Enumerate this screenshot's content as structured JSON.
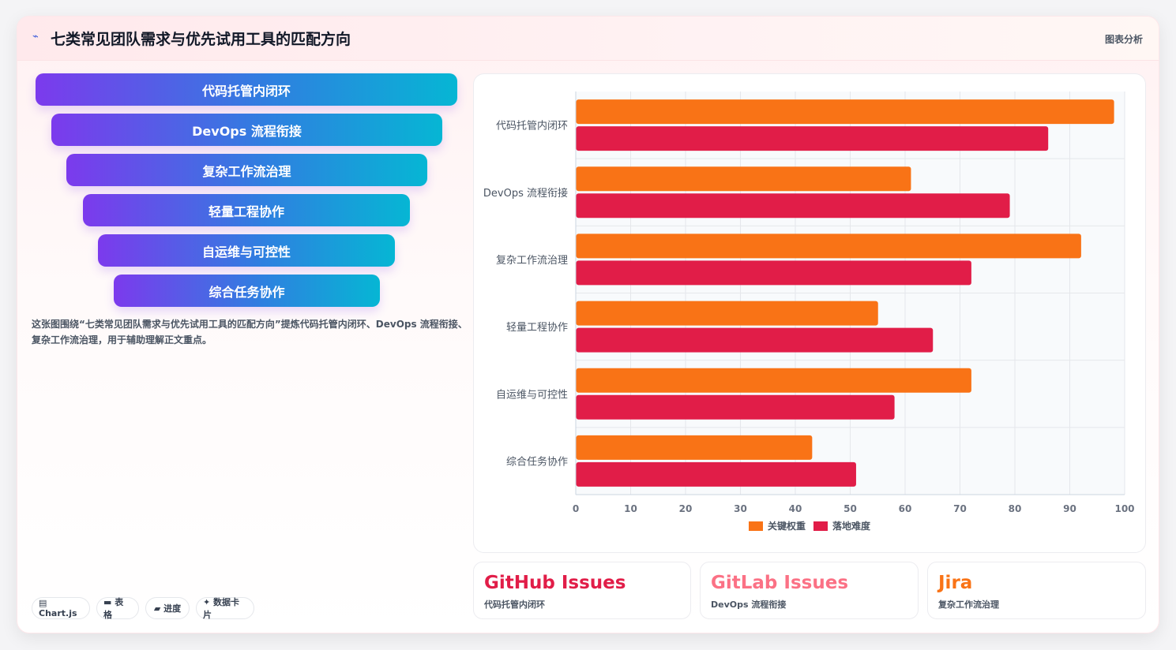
{
  "header": {
    "icon": "trend-icon",
    "title": "七类常见团队需求与优先试用工具的匹配方向",
    "tag": "图表分析"
  },
  "funnel": {
    "items": [
      {
        "label": "代码托管内闭环"
      },
      {
        "label": "DevOps 流程衔接"
      },
      {
        "label": "复杂工作流治理"
      },
      {
        "label": "轻量工程协作"
      },
      {
        "label": "自运维与可控性"
      },
      {
        "label": "综合任务协作"
      }
    ]
  },
  "description": "这张图围绕“七类常见团队需求与优先试用工具的匹配方向”提炼代码托管内闭环、DevOps 流程衔接、复杂工作流治理，用于辅助理解正文重点。",
  "chips": [
    {
      "icon": "chart-icon",
      "label": "▤ Chart.js"
    },
    {
      "icon": "table-icon",
      "label": "▬ 表格"
    },
    {
      "icon": "progress-icon",
      "label": "▰ 进度"
    },
    {
      "icon": "sparkle-icon",
      "label": "✦ 数据卡片"
    }
  ],
  "chart_data": {
    "type": "bar",
    "orientation": "horizontal",
    "categories": [
      "代码托管内闭环",
      "DevOps 流程衔接",
      "复杂工作流治理",
      "轻量工程协作",
      "自运维与可控性",
      "综合任务协作"
    ],
    "series": [
      {
        "name": "关键权重",
        "color": "#f97316",
        "values": [
          98,
          61,
          92,
          55,
          72,
          43
        ]
      },
      {
        "name": "落地难度",
        "color": "#e11d48",
        "values": [
          86,
          79,
          72,
          65,
          58,
          51
        ]
      }
    ],
    "xlim": [
      0,
      100
    ],
    "xticks": [
      0,
      10,
      20,
      30,
      40,
      50,
      60,
      70,
      80,
      90,
      100
    ],
    "grid": true,
    "legend": "bottom"
  },
  "stats": [
    {
      "value": "GitHub Issues",
      "label": "代码托管内闭环",
      "color": "#e11d48"
    },
    {
      "value": "GitLab Issues",
      "label": "DevOps 流程衔接",
      "color": "#fb7185"
    },
    {
      "value": "Jira",
      "label": "复杂工作流治理",
      "color": "#f97316"
    }
  ]
}
